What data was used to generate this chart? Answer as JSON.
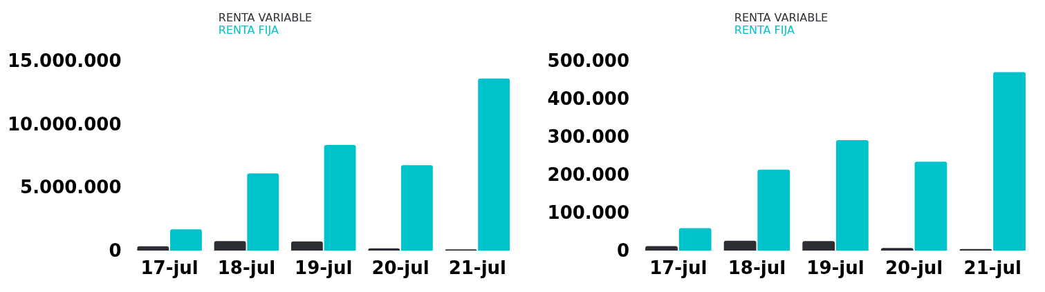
{
  "chart_data": [
    {
      "type": "bar",
      "categories": [
        "17-jul",
        "18-jul",
        "19-jul",
        "20-jul",
        "21-jul"
      ],
      "series": [
        {
          "name": "RENTA VARIABLE",
          "color": "#2b2f33",
          "values": [
            340000,
            750000,
            720000,
            180000,
            100000
          ]
        },
        {
          "name": "RENTA FIJA",
          "color": "#00c2cb",
          "values": [
            1680000,
            6100000,
            8350000,
            6750000,
            13600000
          ]
        }
      ],
      "ylim": [
        0,
        15000000
      ],
      "yticks": [
        {
          "value": 0,
          "label": "0"
        },
        {
          "value": 5000000,
          "label": "5.000.000"
        },
        {
          "value": 10000000,
          "label": "10.000.000"
        },
        {
          "value": 15000000,
          "label": "15.000.000"
        }
      ],
      "grid": false,
      "legend": "top"
    },
    {
      "type": "bar",
      "categories": [
        "17-jul",
        "18-jul",
        "19-jul",
        "20-jul",
        "21-jul"
      ],
      "series": [
        {
          "name": "RENTA VARIABLE",
          "color": "#2b2f33",
          "values": [
            12000,
            26000,
            25000,
            7000,
            4000
          ]
        },
        {
          "name": "RENTA FIJA",
          "color": "#00c2cb",
          "values": [
            59000,
            213000,
            291000,
            234000,
            470000
          ]
        }
      ],
      "ylim": [
        0,
        500000
      ],
      "yticks": [
        {
          "value": 0,
          "label": "0"
        },
        {
          "value": 100000,
          "label": "100.000"
        },
        {
          "value": 200000,
          "label": "200.000"
        },
        {
          "value": 300000,
          "label": "300.000"
        },
        {
          "value": 400000,
          "label": "400.000"
        },
        {
          "value": 500000,
          "label": "500.000"
        }
      ],
      "grid": false,
      "legend": "top"
    }
  ]
}
